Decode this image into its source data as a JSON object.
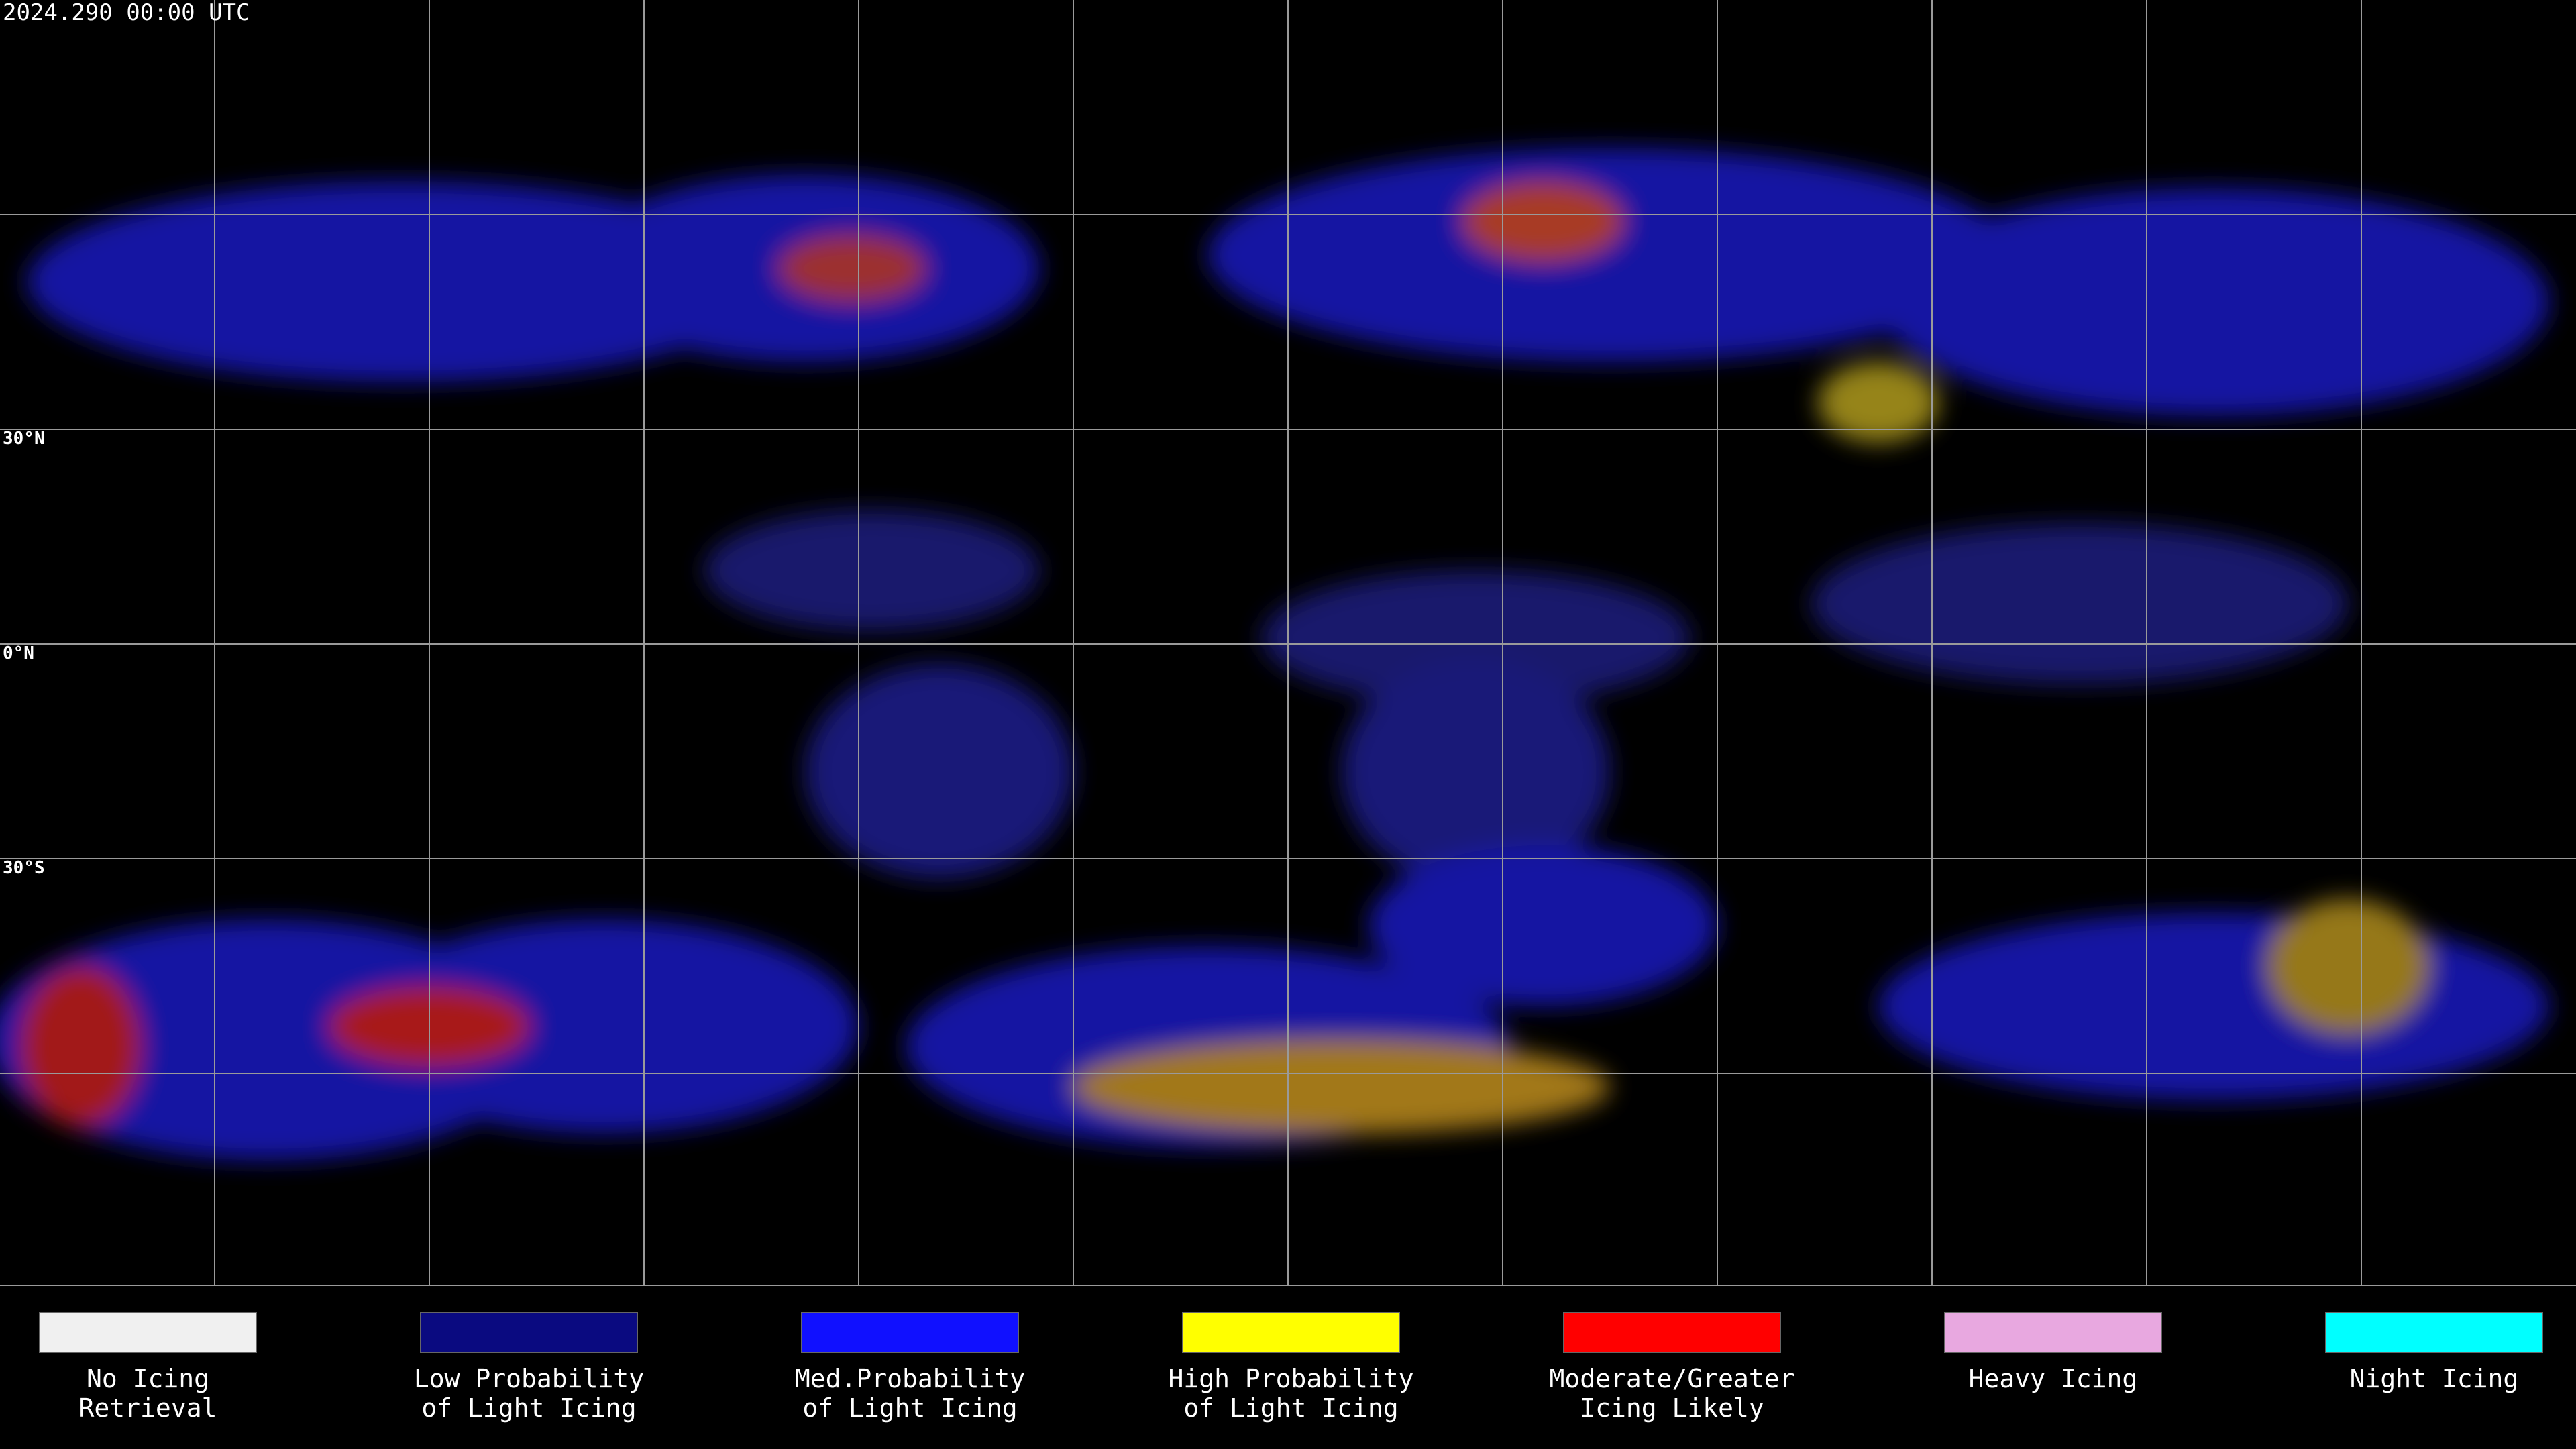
{
  "timestamp": "2024.290 00:00 UTC",
  "latitude_labels": [
    "30°N",
    "0°N",
    "30°S"
  ],
  "legend": [
    {
      "lines": [
        "No Icing",
        "Retrieval"
      ],
      "color": "#f0f0f0"
    },
    {
      "lines": [
        "Low Probability",
        "of Light Icing"
      ],
      "color": "#0a0a80"
    },
    {
      "lines": [
        "Med.Probability",
        "of Light Icing"
      ],
      "color": "#1010ff"
    },
    {
      "lines": [
        "High Probability",
        "of Light Icing"
      ],
      "color": "#ffff00"
    },
    {
      "lines": [
        "Moderate/Greater",
        "Icing Likely"
      ],
      "color": "#ff0000"
    },
    {
      "lines": [
        "Heavy Icing"
      ],
      "color": "#e8a8e0"
    },
    {
      "lines": [
        "Night Icing"
      ],
      "color": "#00ffff"
    }
  ]
}
